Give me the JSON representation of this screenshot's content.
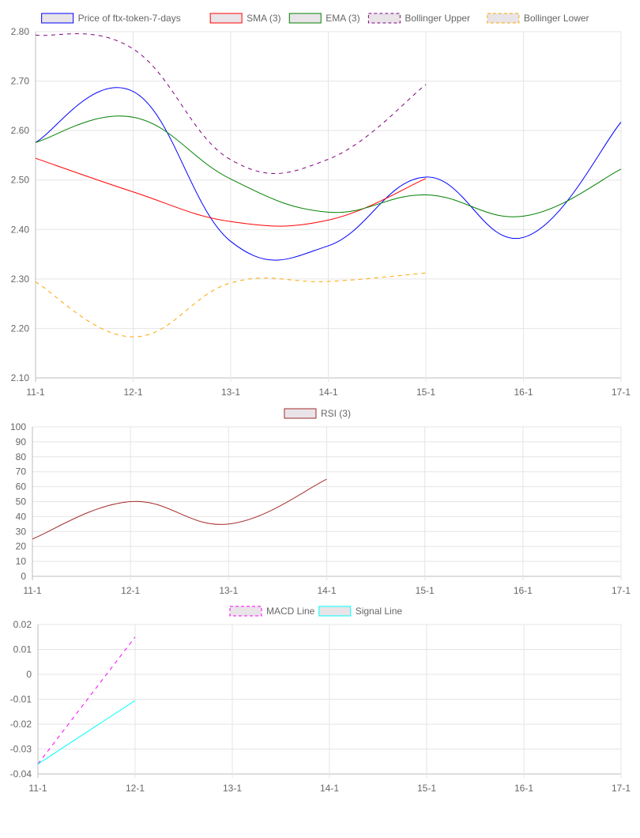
{
  "chart_data": [
    {
      "type": "line",
      "categories": [
        "11-1",
        "12-1",
        "13-1",
        "14-1",
        "15-1",
        "16-1",
        "17-1"
      ],
      "ylim": [
        2.1,
        2.8
      ],
      "yticks": [
        "2.10",
        "2.20",
        "2.30",
        "2.40",
        "2.50",
        "2.60",
        "2.70",
        "2.80"
      ],
      "ytick_values": [
        2.1,
        2.2,
        2.3,
        2.4,
        2.5,
        2.6,
        2.7,
        2.8
      ],
      "grid": true,
      "legend_position": "top",
      "series": [
        {
          "name": "Price of ftx-token-7-days",
          "color": "#0000ff",
          "dashed": false,
          "values": [
            2.576,
            2.679,
            2.376,
            2.367,
            2.506,
            2.384,
            2.617
          ]
        },
        {
          "name": "SMA (3)",
          "color": "#ff0000",
          "dashed": false,
          "values": [
            2.544,
            2.476,
            2.416,
            2.419,
            2.503,
            null,
            null
          ]
        },
        {
          "name": "EMA (3)",
          "color": "#008000",
          "dashed": false,
          "values": [
            2.576,
            2.627,
            2.502,
            2.435,
            2.47,
            2.427,
            2.522
          ]
        },
        {
          "name": "Bollinger Upper",
          "color": "#800080",
          "dashed": true,
          "values": [
            2.793,
            2.765,
            2.541,
            2.542,
            2.693,
            null,
            null
          ]
        },
        {
          "name": "Bollinger Lower",
          "color": "#ffa500",
          "dashed": true,
          "values": [
            2.294,
            2.183,
            2.292,
            2.295,
            2.312,
            null,
            null
          ]
        }
      ]
    },
    {
      "type": "line",
      "categories": [
        "11-1",
        "12-1",
        "13-1",
        "14-1",
        "15-1",
        "16-1",
        "17-1"
      ],
      "ylim": [
        0,
        100
      ],
      "yticks": [
        "0",
        "10",
        "20",
        "30",
        "40",
        "50",
        "60",
        "70",
        "80",
        "90",
        "100"
      ],
      "ytick_values": [
        0,
        10,
        20,
        30,
        40,
        50,
        60,
        70,
        80,
        90,
        100
      ],
      "grid": true,
      "legend_position": "top",
      "series": [
        {
          "name": "RSI (3)",
          "color": "#a52a2a",
          "dashed": false,
          "values": [
            25,
            50,
            35,
            65,
            null,
            null,
            null
          ]
        }
      ]
    },
    {
      "type": "line",
      "categories": [
        "11-1",
        "12-1",
        "13-1",
        "14-1",
        "15-1",
        "16-1",
        "17-1"
      ],
      "ylim": [
        -0.04,
        0.02
      ],
      "yticks": [
        "-0.04",
        "-0.03",
        "-0.02",
        "-0.01",
        "0",
        "0.01",
        "0.02"
      ],
      "ytick_values": [
        -0.04,
        -0.03,
        -0.02,
        -0.01,
        0,
        0.01,
        0.02
      ],
      "grid": true,
      "legend_position": "top",
      "series": [
        {
          "name": "MACD Line",
          "color": "#ff00ff",
          "dashed": true,
          "values": [
            -0.036,
            0.015,
            null,
            null,
            null,
            null,
            null
          ]
        },
        {
          "name": "Signal Line",
          "color": "#00ffff",
          "dashed": false,
          "values": [
            -0.036,
            -0.0105,
            null,
            null,
            null,
            null,
            null
          ]
        }
      ]
    }
  ]
}
